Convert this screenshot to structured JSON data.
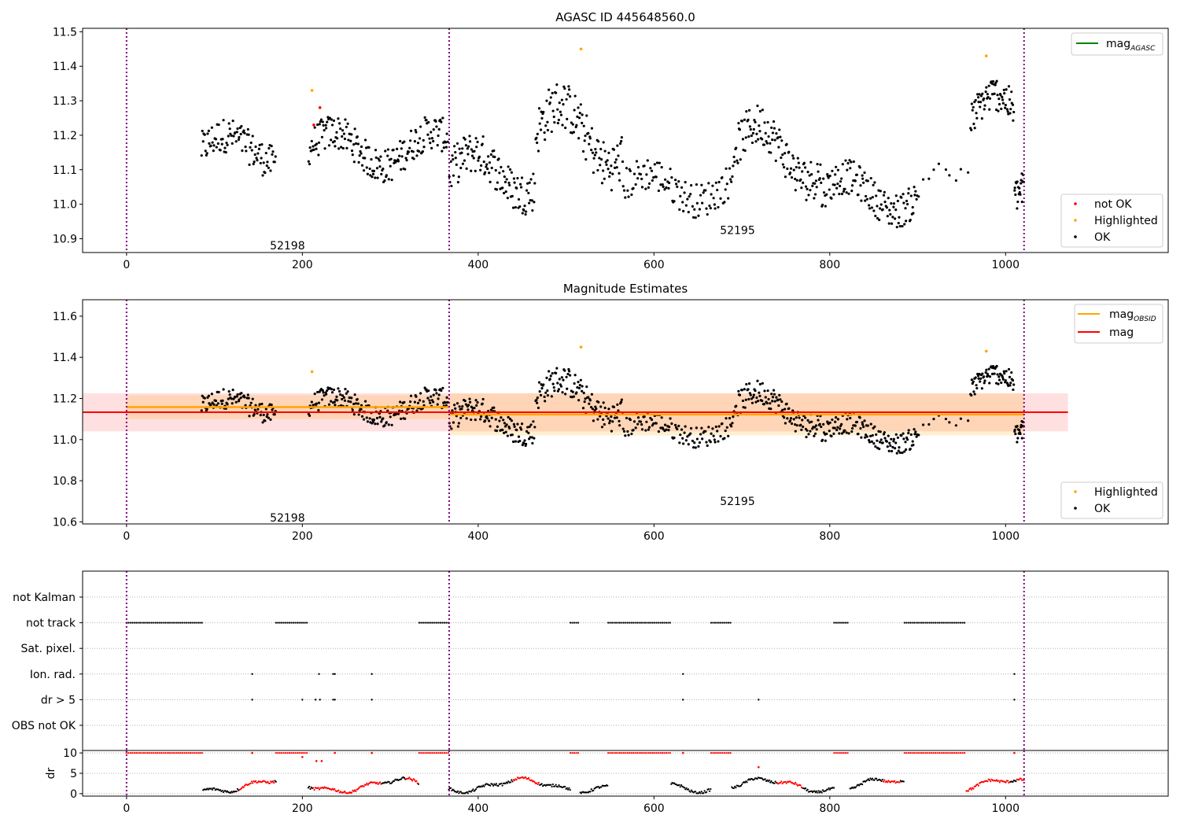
{
  "chart_data": [
    {
      "type": "scatter",
      "title": "AGASC ID 445648560.0",
      "xlim": [
        -50,
        1185
      ],
      "ylim": [
        10.86,
        11.51
      ],
      "x_ticks": [
        0,
        200,
        400,
        600,
        800,
        1000
      ],
      "y_ticks": [
        10.9,
        11.0,
        11.1,
        11.2,
        11.3,
        11.4,
        11.5
      ],
      "y_tick_labels": [
        "10.9",
        "11.0",
        "11.1",
        "11.2",
        "11.3",
        "11.4",
        "11.5"
      ],
      "legend_top": {
        "position": "upper right",
        "entries": [
          {
            "label": "mag",
            "subscript": "AGASC",
            "color": "#008000"
          }
        ]
      },
      "legend_bottom": {
        "position": "lower right",
        "entries": [
          {
            "label": "not OK",
            "color": "#ff0000"
          },
          {
            "label": "Highlighted",
            "color": "#ffa500"
          },
          {
            "label": "OK",
            "color": "#000000"
          }
        ]
      },
      "obsid_annotations": [
        {
          "text": "52198",
          "x": 183,
          "y": 10.88
        },
        {
          "text": "52195",
          "x": 695,
          "y": 10.925
        }
      ],
      "obs_boundaries": [
        0,
        367,
        1021
      ],
      "highlighted_points": [
        {
          "x": 211,
          "y": 11.33
        },
        {
          "x": 517,
          "y": 11.45
        },
        {
          "x": 978,
          "y": 11.43
        }
      ],
      "not_ok_points": [
        {
          "x": 220,
          "y": 11.28
        },
        {
          "x": 213,
          "y": 11.23
        }
      ],
      "ok_segments": [
        {
          "x0": 85,
          "x1": 170,
          "n": 95,
          "base": 11.16,
          "amp": 0.04,
          "noise": 0.05
        },
        {
          "x0": 207,
          "x1": 366,
          "n": 190,
          "base": 11.16,
          "amp": 0.05,
          "noise": 0.05
        },
        {
          "x0": 367,
          "x1": 465,
          "n": 120,
          "base": 11.09,
          "amp": 0.06,
          "noise": 0.06
        },
        {
          "x0": 465,
          "x1": 565,
          "n": 120,
          "base": 11.2,
          "amp": 0.09,
          "noise": 0.07
        },
        {
          "x0": 565,
          "x1": 690,
          "n": 110,
          "base": 11.05,
          "amp": 0.04,
          "noise": 0.05
        },
        {
          "x0": 690,
          "x1": 790,
          "n": 120,
          "base": 11.15,
          "amp": 0.08,
          "noise": 0.06
        },
        {
          "x0": 790,
          "x1": 900,
          "n": 130,
          "base": 11.03,
          "amp": 0.05,
          "noise": 0.05
        },
        {
          "x0": 900,
          "x1": 960,
          "n": 10,
          "base": 11.05,
          "amp": 0.06,
          "noise": 0.05
        },
        {
          "x0": 960,
          "x1": 1010,
          "n": 70,
          "base": 11.24,
          "amp": 0.08,
          "noise": 0.05
        },
        {
          "x0": 1010,
          "x1": 1021,
          "n": 20,
          "base": 11.02,
          "amp": 0.05,
          "noise": 0.05
        }
      ]
    },
    {
      "type": "scatter",
      "title": "Magnitude Estimates",
      "xlim": [
        -50,
        1185
      ],
      "ylim": [
        10.59,
        11.68
      ],
      "x_ticks": [
        0,
        200,
        400,
        600,
        800,
        1000
      ],
      "y_ticks": [
        10.6,
        10.8,
        11.0,
        11.2,
        11.4,
        11.6
      ],
      "y_tick_labels": [
        "10.6",
        "10.8",
        "11.0",
        "11.2",
        "11.4",
        "11.6"
      ],
      "legend_top": {
        "position": "upper right",
        "entries": [
          {
            "label": "mag",
            "subscript": "OBSID",
            "color": "#ffa500"
          },
          {
            "label": "mag",
            "color": "#ff0000"
          }
        ]
      },
      "legend_bottom": {
        "position": "lower right",
        "entries": [
          {
            "label": "Highlighted",
            "color": "#ffa500"
          },
          {
            "label": "OK",
            "color": "#000000"
          }
        ]
      },
      "obsid_annotations": [
        {
          "text": "52198",
          "x": 183,
          "y": 10.62
        },
        {
          "text": "52195",
          "x": 695,
          "y": 10.7
        }
      ],
      "mag_line": {
        "value": 11.133,
        "x0": -50,
        "x1": 1071,
        "band": [
          11.04,
          11.225
        ],
        "color": "#ff0000"
      },
      "obsid_mags": [
        {
          "x0": 0,
          "x1": 367,
          "value": 11.158,
          "band": [
            11.1,
            11.216
          ]
        },
        {
          "x0": 367,
          "x1": 1021,
          "value": 11.122,
          "band": [
            11.02,
            11.224
          ]
        }
      ],
      "highlighted_points": [
        {
          "x": 211,
          "y": 11.33
        },
        {
          "x": 517,
          "y": 11.45
        },
        {
          "x": 978,
          "y": 11.43
        }
      ]
    },
    {
      "type": "scatter",
      "xlim": [
        -50,
        1185
      ],
      "x_ticks": [
        0,
        200,
        400,
        600,
        800,
        1000
      ],
      "flag_rows": [
        "not Kalman",
        "not track",
        "Sat. pixel.",
        "Ion. rad.",
        "dr > 5",
        "OBS not OK"
      ],
      "not_track_ranges": [
        [
          0,
          86
        ],
        [
          170,
          206
        ],
        [
          333,
          366
        ],
        [
          505,
          515
        ],
        [
          548,
          619
        ],
        [
          665,
          688
        ],
        [
          805,
          822
        ],
        [
          885,
          955
        ]
      ],
      "ion_rad_x": [
        143,
        219,
        235,
        237,
        279,
        633,
        1010
      ],
      "dr5_x": [
        143,
        200,
        215,
        220,
        235,
        237,
        279,
        633,
        719,
        1010
      ],
      "dr_ylabel": "dr",
      "dr_yticks": [
        0,
        5,
        10
      ],
      "dr_ylim": [
        -0.6,
        10.6
      ],
      "dr_clip_ranges": [
        [
          0,
          86
        ],
        [
          170,
          206
        ],
        [
          333,
          366
        ],
        [
          505,
          515
        ],
        [
          548,
          619
        ],
        [
          665,
          688
        ],
        [
          805,
          822
        ],
        [
          885,
          955
        ]
      ],
      "dr_clip_single": [
        143,
        237,
        279,
        633,
        1010
      ],
      "dr_red_ranges": [
        [
          128,
          168
        ],
        [
          212,
          290
        ],
        [
          318,
          332
        ],
        [
          440,
          470
        ],
        [
          740,
          770
        ],
        [
          860,
          880
        ],
        [
          955,
          1005
        ],
        [
          1012,
          1021
        ]
      ]
    }
  ]
}
